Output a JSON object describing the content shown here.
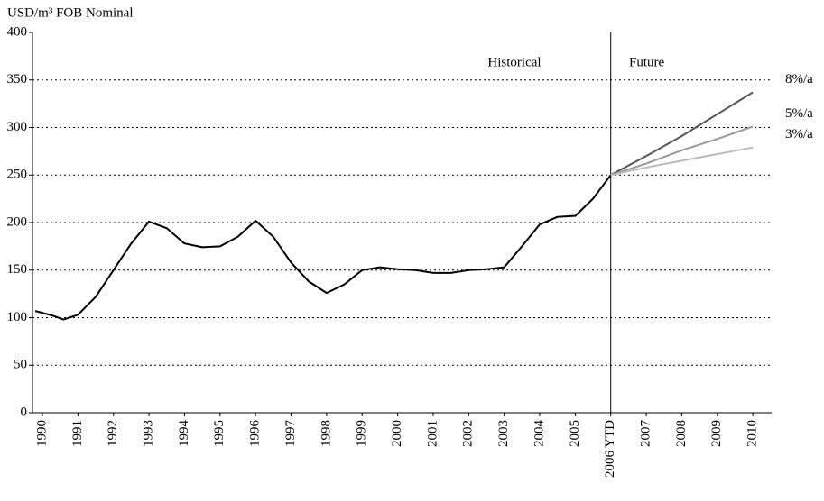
{
  "chart_data": {
    "type": "line",
    "y_axis_label": "USD/m³ FOB Nominal",
    "annotations": [
      "Historical",
      "Future"
    ],
    "divider": 2006,
    "xlim": [
      1989.72,
      2010.53
    ],
    "xticks": [
      {
        "value": 1990,
        "label": "1990"
      },
      {
        "value": 1991,
        "label": "1991"
      },
      {
        "value": 1992,
        "label": "1992"
      },
      {
        "value": 1993,
        "label": "1993"
      },
      {
        "value": 1994,
        "label": "1994"
      },
      {
        "value": 1995,
        "label": "1995"
      },
      {
        "value": 1996,
        "label": "1996"
      },
      {
        "value": 1997,
        "label": "1997"
      },
      {
        "value": 1998,
        "label": "1998"
      },
      {
        "value": 1999,
        "label": "1999"
      },
      {
        "value": 2000,
        "label": "2000"
      },
      {
        "value": 2001,
        "label": "2001"
      },
      {
        "value": 2002,
        "label": "2002"
      },
      {
        "value": 2003,
        "label": "2003"
      },
      {
        "value": 2004,
        "label": "2004"
      },
      {
        "value": 2005,
        "label": "2005"
      },
      {
        "value": 2006,
        "label": "2006 YTD"
      },
      {
        "value": 2007,
        "label": "2007"
      },
      {
        "value": 2008,
        "label": "2008"
      },
      {
        "value": 2009,
        "label": "2009"
      },
      {
        "value": 2010,
        "label": "2010"
      }
    ],
    "ylim": [
      0,
      400
    ],
    "yticks": [
      0,
      50,
      100,
      150,
      200,
      250,
      300,
      350,
      400
    ],
    "grid": true,
    "series": [
      {
        "name": null,
        "color": "#000000",
        "x": [
          1989.8,
          1990,
          1990.3,
          1990.6,
          1991,
          1991.5,
          1992,
          1992.5,
          1993,
          1993.5,
          1994,
          1994.5,
          1995,
          1995.5,
          1996,
          1996.5,
          1997,
          1997.5,
          1998,
          1998.5,
          1999,
          1999.5,
          2000,
          2000.5,
          2001,
          2001.5,
          2002,
          2002.5,
          2003,
          2003.5,
          2004,
          2004.5,
          2005,
          2005.5,
          2006
        ],
        "values": [
          107,
          105,
          102,
          98,
          103,
          122,
          150,
          178,
          201,
          194,
          178,
          174,
          175,
          185,
          202,
          185,
          158,
          138,
          126,
          135,
          150,
          153,
          151,
          150,
          147,
          147,
          150,
          151,
          153,
          175,
          198,
          206,
          207,
          225,
          250
        ]
      },
      {
        "name": "8%/a",
        "color": "#555555",
        "x": [
          2006,
          2007,
          2008,
          2009,
          2010
        ],
        "values": [
          250,
          270,
          291,
          314,
          337
        ]
      },
      {
        "name": "5%/a",
        "color": "#999999",
        "x": [
          2006,
          2007,
          2008,
          2009,
          2010
        ],
        "values": [
          250,
          262,
          276,
          288,
          301
        ]
      },
      {
        "name": "3%/a",
        "color": "#bbbbbb",
        "x": [
          2006,
          2007,
          2008,
          2009,
          2010
        ],
        "values": [
          250,
          258,
          265,
          272,
          279
        ]
      }
    ]
  }
}
